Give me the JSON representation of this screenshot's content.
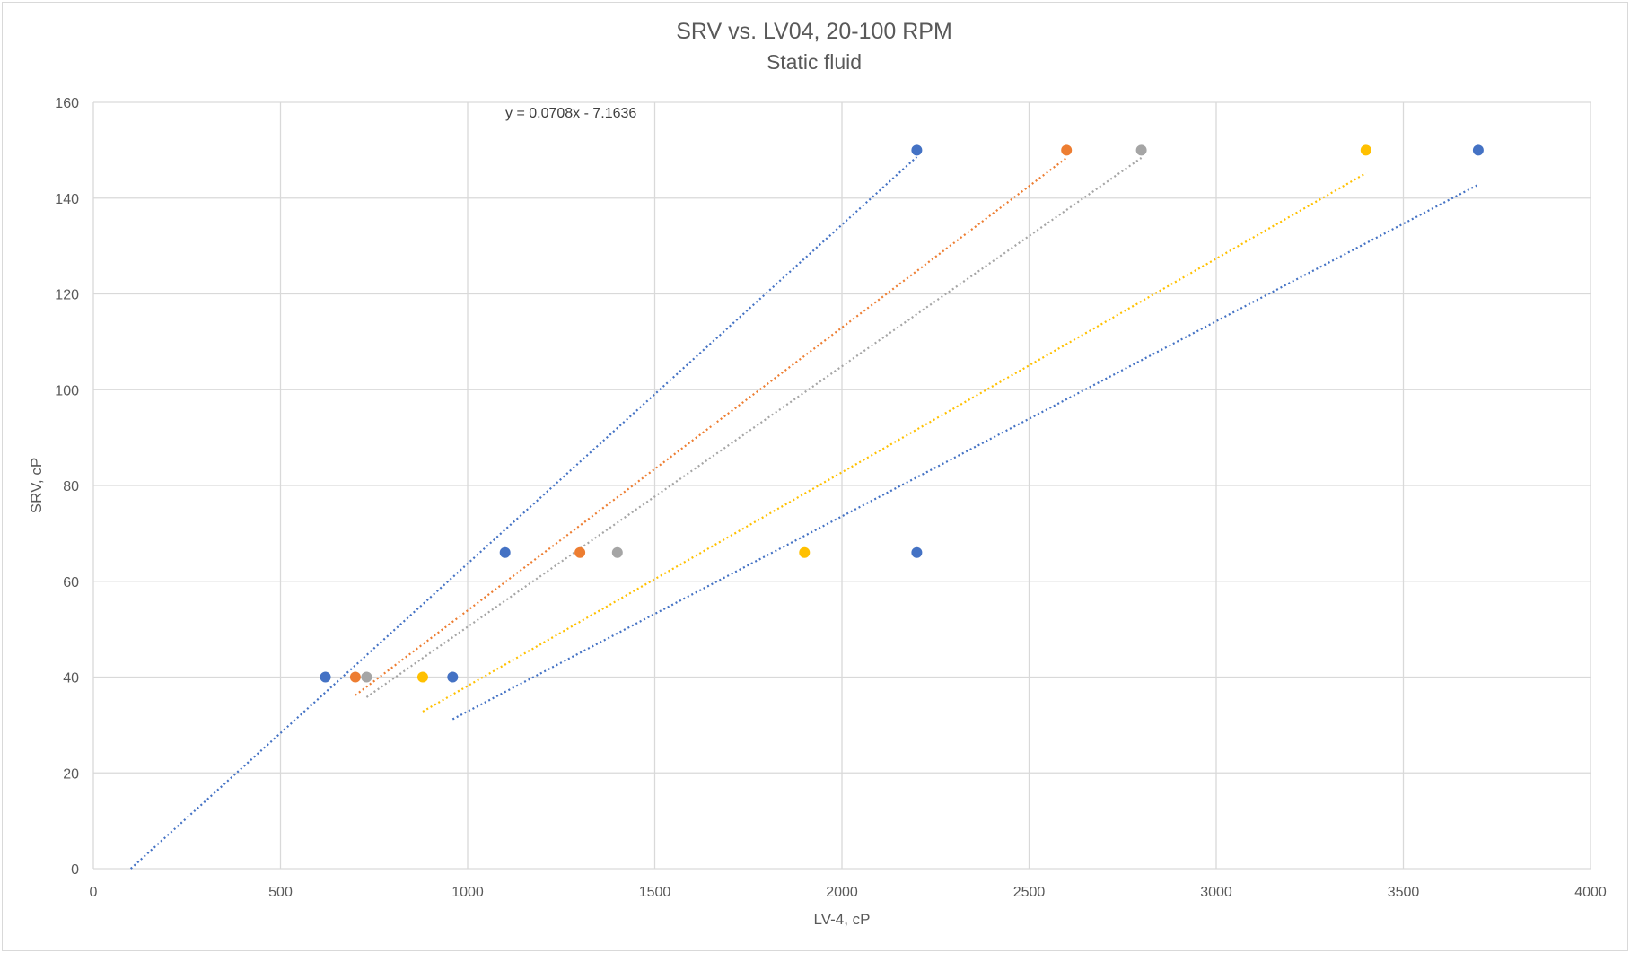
{
  "chart_data": {
    "type": "scatter",
    "title": "SRV vs. LV04, 20-100 RPM",
    "subtitle": "Static fluid",
    "xlabel": "LV-4, cP",
    "ylabel": "SRV, cP",
    "xlim": [
      0,
      4000
    ],
    "ylim": [
      0,
      160
    ],
    "xticks": [
      0,
      500,
      1000,
      1500,
      2000,
      2500,
      3000,
      3500,
      4000
    ],
    "yticks": [
      0,
      20,
      40,
      60,
      80,
      100,
      120,
      140,
      160
    ],
    "grid": true,
    "legend": "none",
    "annotation": "y = 0.0708x - 7.1636",
    "series": [
      {
        "color": "#4472c4",
        "points": [
          [
            620,
            40
          ],
          [
            1100,
            66
          ],
          [
            2200,
            150
          ]
        ],
        "trendline": [
          [
            100,
            0
          ],
          [
            2200,
            148.6
          ]
        ]
      },
      {
        "color": "#ed7d31",
        "points": [
          [
            700,
            40
          ],
          [
            1300,
            66
          ],
          [
            2600,
            150
          ]
        ],
        "trendline": [
          [
            700,
            36.2
          ],
          [
            2600,
            148.4
          ]
        ]
      },
      {
        "color": "#a5a5a5",
        "points": [
          [
            730,
            40
          ],
          [
            1400,
            66
          ],
          [
            2800,
            150
          ]
        ],
        "trendline": [
          [
            730,
            35.8
          ],
          [
            2800,
            148.4
          ]
        ]
      },
      {
        "color": "#ffc000",
        "points": [
          [
            880,
            40
          ],
          [
            1900,
            66
          ],
          [
            3400,
            150
          ]
        ],
        "trendline": [
          [
            880,
            32.8
          ],
          [
            3400,
            145.2
          ]
        ]
      },
      {
        "color": "#4472c4",
        "points": [
          [
            960,
            40
          ],
          [
            2200,
            66
          ],
          [
            3700,
            150
          ]
        ],
        "trendline": [
          [
            960,
            31.2
          ],
          [
            3700,
            142.8
          ]
        ]
      }
    ]
  }
}
